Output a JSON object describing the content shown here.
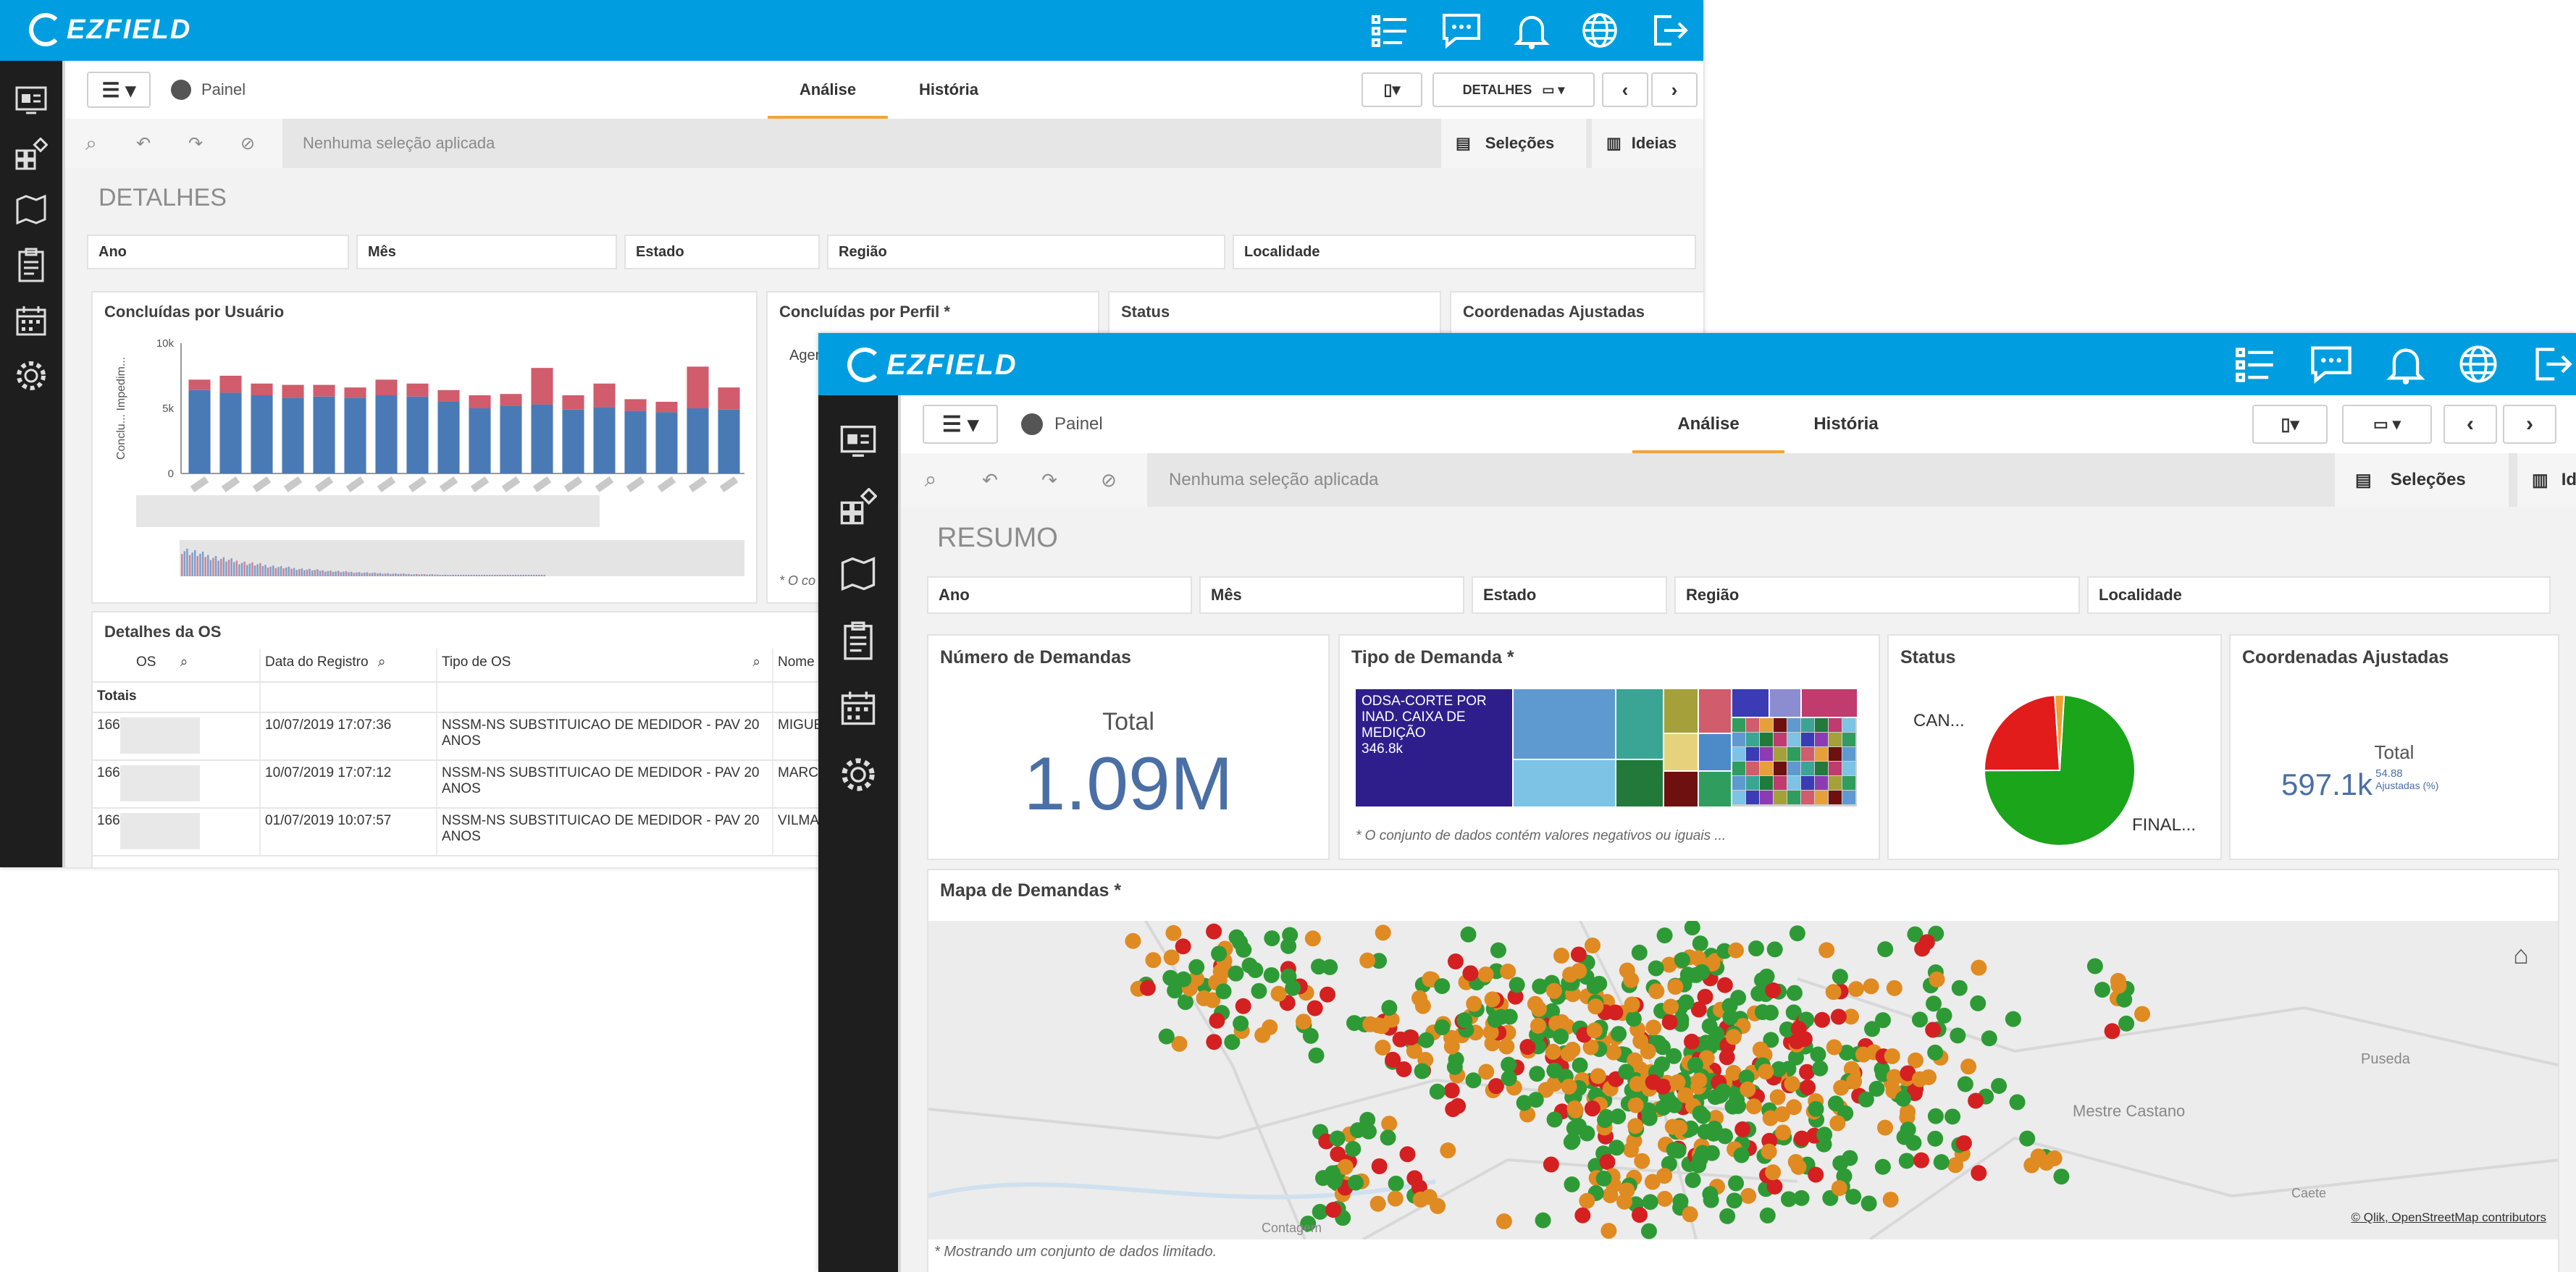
{
  "app": {
    "logo_text": "EZFIELD",
    "brand_color": "#009ee0",
    "sidebar_color": "#1e1e1e"
  },
  "topbar_icons": [
    "tasks-icon",
    "chat-icon",
    "bell-icon",
    "globe-icon",
    "logout-icon"
  ],
  "sidebar_icons": [
    "dashboard-icon",
    "apps-icon",
    "map-icon",
    "clipboard-icon",
    "calendar-icon",
    "settings-icon"
  ],
  "back": {
    "toolbar": {
      "breadcrumb": "Painel",
      "tab_analysis": "Análise",
      "tab_history": "História",
      "details_button": "DETALHES"
    },
    "selections": {
      "empty_text": "Nenhuma seleção aplicada",
      "selections_label": "Seleções",
      "insights_label": "Ideias"
    },
    "sheet_title": "DETALHES",
    "filters": [
      "Ano",
      "Mês",
      "Estado",
      "Região",
      "Localidade"
    ],
    "cards": {
      "by_user": "Concluídas por Usuário",
      "by_profile": "Concluídas por Perfil *",
      "status": "Status",
      "coords": "Coordenadas Ajustadas",
      "profile_partial": "Ager",
      "profile_note": "* O co"
    },
    "chart_data": {
      "type": "bar",
      "title": "Concluídas por Usuário",
      "ylabel": "Conclu... Impedim...",
      "yticks": [
        "10k",
        "5k",
        "0"
      ],
      "ylim": [
        0,
        10000
      ],
      "colors": {
        "concluidas": "#4a7ab5",
        "impedimento": "#d05c6c"
      },
      "series": [
        {
          "name": "",
          "values": [
            6400,
            6200,
            6000,
            5800,
            5900,
            5800,
            6000,
            5900,
            5500,
            5000,
            5200,
            5300,
            4900,
            5100,
            4800,
            4700,
            5000,
            4900
          ]
        },
        {
          "name": "",
          "values": [
            800,
            1300,
            900,
            1000,
            900,
            800,
            1200,
            1000,
            900,
            1000,
            900,
            2800,
            1100,
            1800,
            900,
            800,
            3200,
            1700
          ]
        }
      ]
    },
    "details": {
      "title": "Detalhes da OS",
      "columns": [
        "OS",
        "Data do Registro",
        "Tipo de OS",
        "Nome do Re"
      ],
      "totals_label": "Totais",
      "rows": [
        {
          "os": "166",
          "date": "10/07/2019 17:07:36",
          "type": "NSSM-NS SUBSTITUICAO DE MEDIDOR - PAV 20 ANOS",
          "name": "MIGUEL"
        },
        {
          "os": "166",
          "date": "10/07/2019 17:07:12",
          "type": "NSSM-NS SUBSTITUICAO DE MEDIDOR - PAV 20 ANOS",
          "name": "MARCIO"
        },
        {
          "os": "166",
          "date": "01/07/2019 10:07:57",
          "type": "NSSM-NS SUBSTITUICAO DE MEDIDOR - PAV 20 ANOS",
          "name": "VILMA E"
        }
      ]
    }
  },
  "front": {
    "toolbar": {
      "breadcrumb": "Painel",
      "tab_analysis": "Análise",
      "tab_history": "História"
    },
    "selections": {
      "empty_text": "Nenhuma seleção aplicada",
      "selections_label": "Seleções",
      "insights_label": "Ideias"
    },
    "sheet_title": "RESUMO",
    "filters": [
      "Ano",
      "Mês",
      "Estado",
      "Região",
      "Localidade"
    ],
    "kpi_demands": {
      "title": "Número de Demandas",
      "label": "Total",
      "value": "1.09M",
      "value_color": "#4a6fa5"
    },
    "demand_type": {
      "title": "Tipo de Demanda *",
      "top_label": "ODSA-CORTE POR INAD. CAIXA DE MEDIÇÃO",
      "top_value": "346.8k",
      "note": "* O conjunto de dados contém valores negativos ou iguais ..."
    },
    "status": {
      "title": "Status",
      "label_small": "CAN...",
      "label_large": "FINAL...",
      "chart_data": {
        "type": "pie",
        "slices": [
          {
            "label": "FINAL...",
            "value": 74,
            "color": "#1aa51a"
          },
          {
            "label": "CAN...",
            "value": 24,
            "color": "#e21b1b"
          },
          {
            "label": "",
            "value": 2,
            "color": "#f0a030"
          }
        ]
      }
    },
    "coords": {
      "title": "Coordenadas Ajustadas",
      "label": "Total",
      "value": "597.1k",
      "sub_value": "54.88",
      "sub_label": "Ajustadas (%)"
    },
    "map": {
      "title": "Mapa de Demandas *",
      "places": [
        "Mestre Castano",
        "Puseda",
        "Caete",
        "Contagem"
      ],
      "attribution": "© Qlik, OpenStreetMap contributors",
      "note": "* Mostrando um conjunto de dados limitado."
    }
  }
}
